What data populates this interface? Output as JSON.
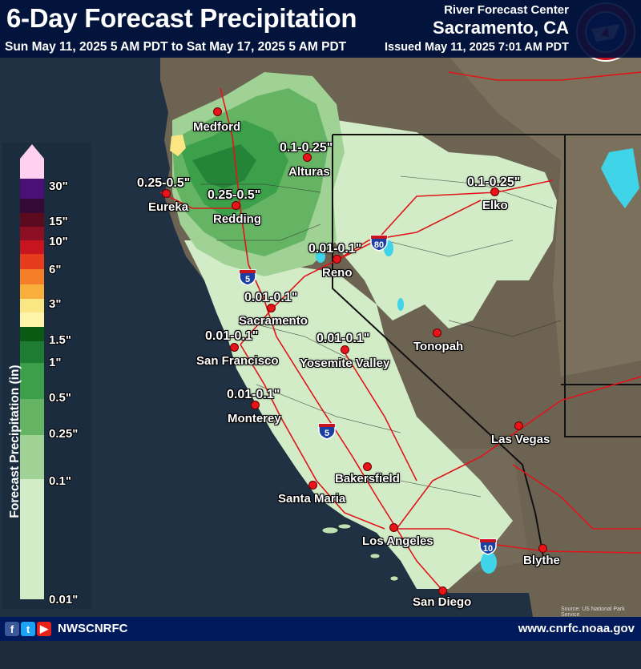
{
  "header": {
    "title": "6-Day Forecast Precipitation",
    "period": "Sun May 11, 2025 5 AM PDT to Sat May 17, 2025 5 AM PDT",
    "rfc_line1": "River Forecast Center",
    "rfc_line2": "Sacramento, CA",
    "issued": "Issued May 11, 2025 7:01 AM PDT",
    "logo_text": "NATIONAL WEATHER SERVICE"
  },
  "legend": {
    "axis_title": "Forecast Precipitation (in)",
    "labels": [
      "30\"",
      "15\"",
      "10\"",
      "6\"",
      "3\"",
      "1.5\"",
      "1\"",
      "0.5\"",
      "0.25\"",
      "0.1\"",
      "0.01\""
    ],
    "colors": [
      "#ffd0f0",
      "#4b0f78",
      "#360a36",
      "#5c0a1e",
      "#8c0f23",
      "#c8141e",
      "#e63c1e",
      "#f57f28",
      "#faaf3c",
      "#fae682",
      "#fff5aa",
      "#0a5a14",
      "#1e7d32",
      "#3ca04b",
      "#64b464",
      "#a0d296",
      "#d2ecc8"
    ]
  },
  "cities": [
    {
      "name": "Medford"
    },
    {
      "name": "Alturas"
    },
    {
      "name": "Eureka"
    },
    {
      "name": "Redding"
    },
    {
      "name": "Elko"
    },
    {
      "name": "Reno"
    },
    {
      "name": "Sacramento"
    },
    {
      "name": "San Francisco"
    },
    {
      "name": "Yosemite Valley"
    },
    {
      "name": "Tonopah"
    },
    {
      "name": "Monterey"
    },
    {
      "name": "Las Vegas"
    },
    {
      "name": "Bakersfield"
    },
    {
      "name": "Santa Maria"
    },
    {
      "name": "Los Angeles"
    },
    {
      "name": "Blythe"
    },
    {
      "name": "San Diego"
    }
  ],
  "amounts": [
    {
      "text": "0.1-0.25\""
    },
    {
      "text": "0.25-0.5\""
    },
    {
      "text": "0.25-0.5\""
    },
    {
      "text": "0.1-0.25\""
    },
    {
      "text": "0.01-0.1\""
    },
    {
      "text": "0.01-0.1\""
    },
    {
      "text": "0.01-0.1\""
    },
    {
      "text": "0.01-0.1\""
    },
    {
      "text": "0.01-0.1\""
    }
  ],
  "highway_shields": [
    "5",
    "80",
    "5",
    "10"
  ],
  "source_note": "Source: US National Park Service",
  "footer": {
    "handle": "NWSCNRFC",
    "website": "www.cnrfc.noaa.gov",
    "social_icons": [
      "facebook-icon",
      "twitter-icon",
      "youtube-icon"
    ]
  }
}
